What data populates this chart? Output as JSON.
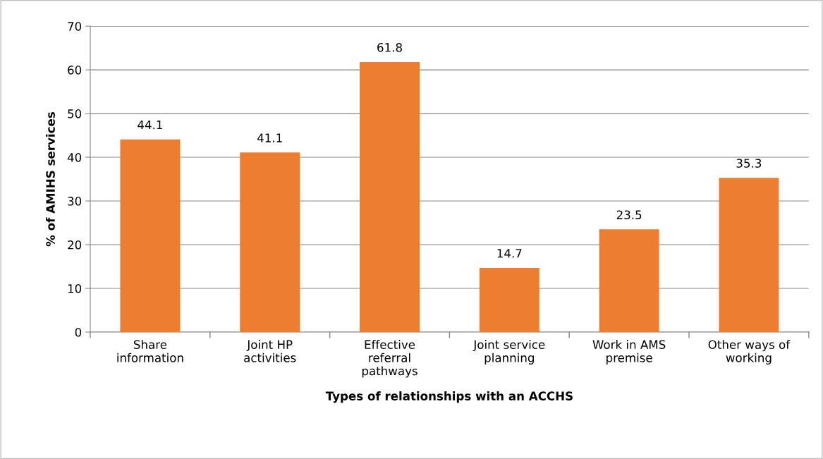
{
  "chart_data": {
    "type": "bar",
    "xlabel": "Types of relationships with an ACCHS",
    "ylabel": "% of AMIHS services",
    "categories": [
      "Share\ninformation",
      "Joint HP\nactivities",
      "Effective\nreferral\npathways",
      "Joint service\nplanning",
      "Work in AMS\npremise",
      "Other ways of\nworking"
    ],
    "values": [
      44.1,
      41.1,
      61.8,
      14.7,
      23.5,
      35.3
    ],
    "color": "#ed7d31",
    "ylim": [
      0,
      70
    ],
    "yticks": [
      0,
      10,
      20,
      30,
      40,
      50,
      60,
      70
    ],
    "grid": "y",
    "data_labels": true
  }
}
